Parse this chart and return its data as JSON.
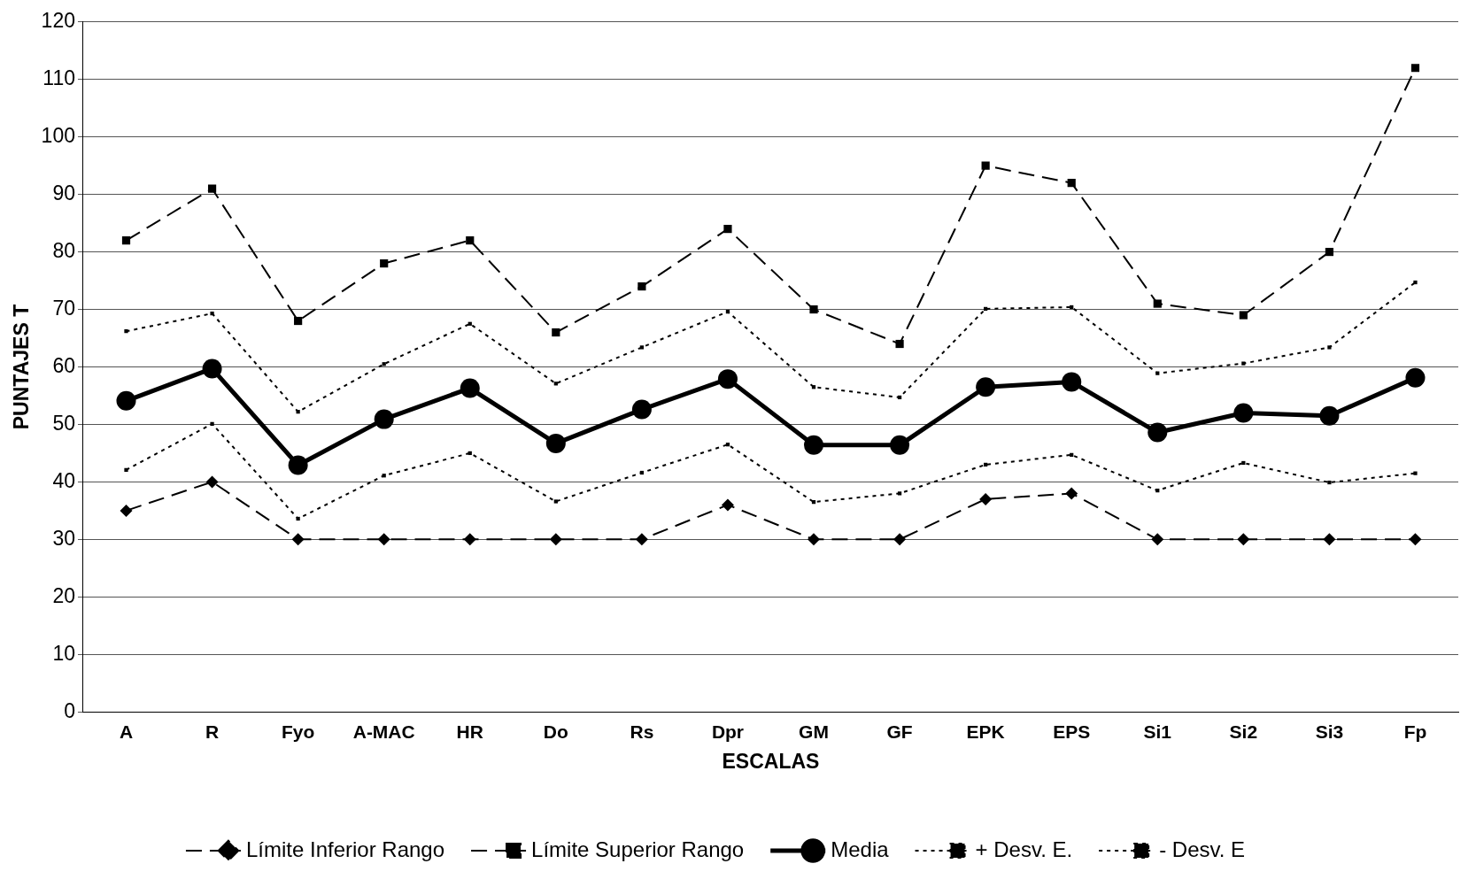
{
  "chart_data": {
    "type": "line",
    "xlabel": "ESCALAS",
    "ylabel": "PUNTAJES T",
    "categories": [
      "A",
      "R",
      "Fyo",
      "A-MAC",
      "HR",
      "Do",
      "Rs",
      "Dpr",
      "GM",
      "GF",
      "EPK",
      "EPS",
      "Si1",
      "Si2",
      "Si3",
      "Fp"
    ],
    "ylim": [
      0,
      120
    ],
    "yticks": [
      0,
      10,
      20,
      30,
      40,
      50,
      60,
      70,
      80,
      90,
      100,
      110,
      120
    ],
    "grid": "y",
    "legend": "bottom",
    "series": [
      {
        "name": "Límite Inferior Rango",
        "color": "#000000",
        "marker": "diamond",
        "line_style": "dashed",
        "values": [
          35,
          40,
          30,
          30,
          30,
          30,
          30,
          36,
          30,
          30,
          37,
          38,
          30,
          30,
          30,
          30
        ]
      },
      {
        "name": "Límite Superior Rango",
        "color": "#000000",
        "marker": "square",
        "line_style": "dashed",
        "values": [
          82,
          91,
          68,
          78,
          82,
          66,
          74,
          84,
          70,
          64,
          95,
          92,
          71,
          69,
          80,
          112
        ]
      },
      {
        "name": "Media",
        "color": "#000000",
        "marker": "circle",
        "line_style": "solid",
        "values": [
          54.1,
          59.7,
          42.9,
          50.9,
          56.3,
          46.7,
          52.6,
          57.9,
          46.4,
          46.4,
          56.5,
          57.4,
          48.6,
          52,
          51.5,
          58.1
        ]
      },
      {
        "name": "+ Desv. E.",
        "color": "#000000",
        "marker": "square",
        "line_style": "dotted",
        "values": [
          66.2,
          69.3,
          52.2,
          60.5,
          67.5,
          57.1,
          63.4,
          69.6,
          56.5,
          54.7,
          70.1,
          70.4,
          58.9,
          60.6,
          63.4,
          74.7
        ]
      },
      {
        "name": "- Desv. E",
        "color": "#000000",
        "marker": "square",
        "line_style": "dotted",
        "values": [
          42.1,
          50.1,
          33.6,
          41.1,
          45,
          36.6,
          41.6,
          46.5,
          36.5,
          38,
          43,
          44.7,
          38.5,
          43.3,
          39.9,
          41.5
        ]
      }
    ]
  }
}
